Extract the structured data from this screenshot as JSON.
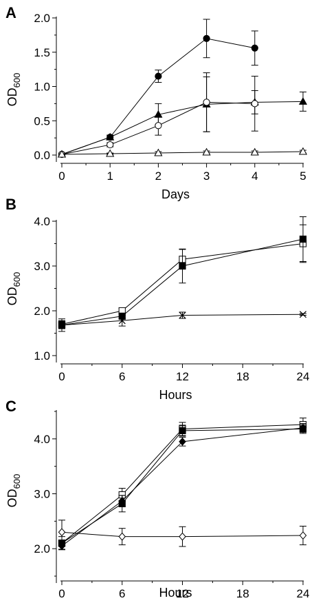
{
  "chart_data": [
    {
      "type": "line",
      "panel_label": "A",
      "xlabel": "Days",
      "ylabel": "OD",
      "ylabel_sub": "600",
      "xlim": [
        0,
        5
      ],
      "ylim": [
        0,
        2.0
      ],
      "xticks": [
        0,
        1,
        2,
        3,
        4,
        5
      ],
      "yticks": [
        0,
        0.5,
        1.0,
        1.5,
        2.0
      ],
      "ytick_labels": [
        "0.0",
        "0.5",
        "1.0",
        "1.5",
        "2.0"
      ],
      "grid": false,
      "series": [
        {
          "marker": "circle-filled",
          "x": [
            0,
            1,
            2,
            3,
            4
          ],
          "y": [
            0.01,
            0.26,
            1.15,
            1.7,
            1.56
          ],
          "err": [
            0.02,
            0.03,
            0.09,
            0.28,
            0.25
          ]
        },
        {
          "marker": "triangle-filled",
          "x": [
            0,
            1,
            2,
            3,
            4,
            5
          ],
          "y": [
            0.01,
            0.26,
            0.59,
            0.74,
            0.77,
            0.78
          ],
          "err": [
            0.02,
            0.03,
            0.16,
            0.4,
            0.17,
            0.14
          ]
        },
        {
          "marker": "circle-open",
          "x": [
            0,
            1,
            2,
            3,
            4
          ],
          "y": [
            0.01,
            0.15,
            0.43,
            0.77,
            0.75
          ],
          "err": [
            0.02,
            0.03,
            0.14,
            0.43,
            0.4
          ]
        },
        {
          "marker": "triangle-open",
          "x": [
            0,
            1,
            2,
            3,
            4,
            5
          ],
          "y": [
            0.01,
            0.02,
            0.03,
            0.04,
            0.04,
            0.05
          ],
          "err": [
            0.01,
            0.01,
            0.02,
            0.02,
            0.02,
            0.02
          ]
        }
      ]
    },
    {
      "type": "line",
      "panel_label": "B",
      "xlabel": "Hours",
      "ylabel": "OD",
      "ylabel_sub": "600",
      "xlim": [
        0,
        24
      ],
      "ylim": [
        1.0,
        4.0
      ],
      "xticks": [
        0,
        6,
        12,
        18,
        24
      ],
      "yticks": [
        1.0,
        2.0,
        3.0,
        4.0
      ],
      "ytick_labels": [
        "1.0",
        "2.0",
        "3.0",
        "4.0"
      ],
      "grid": false,
      "series": [
        {
          "marker": "square-open",
          "x": [
            0,
            6,
            12,
            24
          ],
          "y": [
            1.7,
            2.0,
            3.15,
            3.5
          ],
          "err": [
            0.08,
            0.06,
            0.22,
            0.42
          ]
        },
        {
          "marker": "square-filled",
          "x": [
            0,
            6,
            12,
            24
          ],
          "y": [
            1.68,
            1.88,
            3.0,
            3.6
          ],
          "err": [
            0.14,
            0.05,
            0.38,
            0.5
          ]
        },
        {
          "marker": "cross",
          "x": [
            0,
            6,
            12,
            24
          ],
          "y": [
            1.68,
            1.78,
            1.9,
            1.92
          ],
          "err": [
            0.08,
            0.12,
            0.07,
            0.02
          ]
        }
      ]
    },
    {
      "type": "line",
      "panel_label": "C",
      "xlabel": "Hours",
      "ylabel": "OD",
      "ylabel_sub": "600",
      "xlim": [
        0,
        24
      ],
      "ylim": [
        1.5,
        4.5
      ],
      "xticks": [
        0,
        6,
        12,
        18,
        24
      ],
      "yticks": [
        2.0,
        3.0,
        4.0
      ],
      "ytick_labels": [
        "2.0",
        "3.0",
        "4.0"
      ],
      "minor_yticks": [
        1.5,
        2.5,
        3.5,
        4.5
      ],
      "grid": false,
      "series": [
        {
          "marker": "square-open",
          "x": [
            0,
            6,
            12,
            24
          ],
          "y": [
            2.1,
            2.98,
            4.18,
            4.26
          ],
          "err": [
            0.12,
            0.12,
            0.12,
            0.12
          ]
        },
        {
          "marker": "square-filled",
          "x": [
            0,
            6,
            12,
            24
          ],
          "y": [
            2.1,
            2.82,
            4.15,
            4.18
          ],
          "err": [
            0.06,
            0.15,
            0.1,
            0.08
          ]
        },
        {
          "marker": "diamond-filled",
          "x": [
            0,
            6,
            12,
            24
          ],
          "y": [
            2.05,
            2.87,
            3.95,
            4.2
          ],
          "err": [
            0.06,
            0.1,
            0.08,
            0.08
          ]
        },
        {
          "marker": "diamond-open",
          "x": [
            0,
            6,
            12,
            24
          ],
          "y": [
            2.3,
            2.22,
            2.22,
            2.24
          ],
          "err": [
            0.22,
            0.15,
            0.18,
            0.17
          ]
        }
      ]
    }
  ]
}
